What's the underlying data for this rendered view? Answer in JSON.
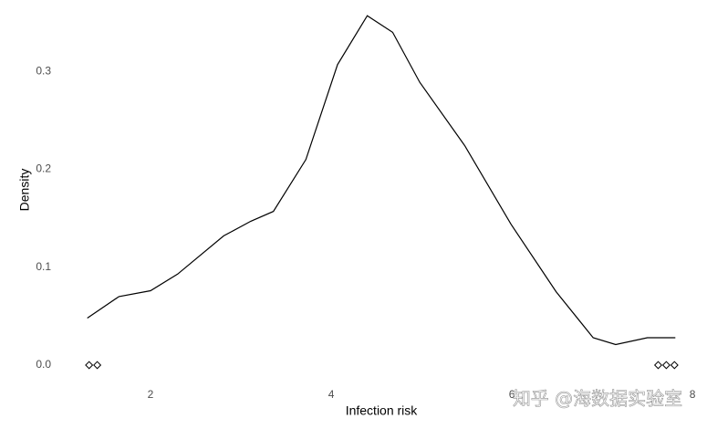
{
  "chart_data": {
    "type": "density",
    "x_label": "Infection risk",
    "y_label": "Density",
    "x": [
      1.3,
      1.65,
      2.0,
      2.3,
      2.81,
      3.11,
      3.36,
      3.72,
      4.07,
      4.4,
      4.68,
      4.98,
      5.48,
      5.99,
      6.49,
      6.9,
      7.15,
      7.5,
      7.81
    ],
    "values": [
      0.048,
      0.07,
      0.076,
      0.093,
      0.132,
      0.147,
      0.157,
      0.21,
      0.307,
      0.357,
      0.34,
      0.289,
      0.224,
      0.144,
      0.075,
      0.028,
      0.021,
      0.028,
      0.028
    ],
    "color": "#000000",
    "points": {
      "x": [
        1.32,
        1.41,
        7.62,
        7.71,
        7.8
      ],
      "y": [
        0,
        0,
        0,
        0,
        0
      ]
    },
    "xlim": [
      0.99,
      8.11
    ],
    "ylim": [
      -0.014,
      0.373
    ],
    "xticks": [
      2,
      4,
      6,
      8
    ],
    "yticks": [
      {
        "value": 0,
        "label": "0.0"
      },
      0.1,
      0.2,
      0.3
    ],
    "grid": false
  },
  "watermark": "知乎 @海数据实验室"
}
